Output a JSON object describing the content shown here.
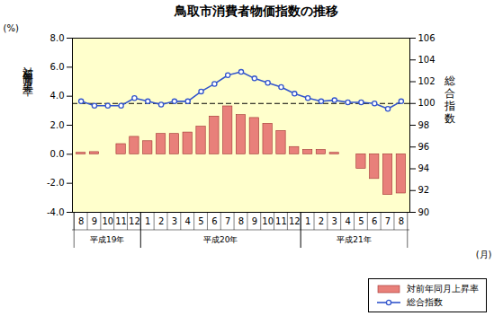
{
  "chart_data": {
    "type": "bar",
    "title": "鳥取市消費者物価指数の推移",
    "xlabel": "(月)",
    "categories": [
      "8",
      "9",
      "10",
      "11",
      "12",
      "1",
      "2",
      "3",
      "4",
      "5",
      "6",
      "7",
      "8",
      "9",
      "10",
      "11",
      "12",
      "1",
      "2",
      "3",
      "4",
      "5",
      "6",
      "7",
      "8"
    ],
    "x_group": [
      "平成19年",
      "平成19年",
      "平成19年",
      "平成19年",
      "平成19年",
      "平成20年",
      "平成20年",
      "平成20年",
      "平成20年",
      "平成20年",
      "平成20年",
      "平成20年",
      "平成20年",
      "平成20年",
      "平成20年",
      "平成20年",
      "平成20年",
      "平成21年",
      "平成21年",
      "平成21年",
      "平成21年",
      "平成21年",
      "平成21年",
      "平成21年",
      "平成21年"
    ],
    "ylabel": "対前年同月上昇率",
    "y_unit_label": "(%)",
    "y2label": "総合指数",
    "ylim": [
      -4,
      8
    ],
    "yticks": [
      {
        "value": -4,
        "label": "-4.0"
      },
      {
        "value": -2,
        "label": "-2.0"
      },
      {
        "value": 0,
        "label": "0.0"
      },
      {
        "value": 2,
        "label": "2.0"
      },
      {
        "value": 4,
        "label": "4.0"
      },
      {
        "value": 6,
        "label": "6.0"
      },
      {
        "value": 8,
        "label": "8.0"
      }
    ],
    "y2lim": [
      90,
      106
    ],
    "y2ticks": [
      90,
      92,
      94,
      96,
      98,
      100,
      102,
      104,
      106
    ],
    "series": [
      {
        "name": "対前年同月上昇率",
        "type": "bar",
        "color": "#E8807A",
        "values": [
          0.1,
          0.15,
          0.0,
          0.7,
          1.2,
          0.9,
          1.4,
          1.4,
          1.5,
          1.9,
          2.6,
          3.3,
          2.7,
          2.5,
          2.1,
          1.6,
          0.5,
          0.3,
          0.3,
          0.1,
          0.0,
          -1.0,
          -1.7,
          -2.8,
          -2.7
        ]
      },
      {
        "name": "総合指数",
        "type": "line",
        "axis": "y2",
        "color": "#3355CC",
        "marker": "circle",
        "values": [
          100.2,
          99.8,
          99.8,
          99.8,
          100.5,
          100.2,
          99.9,
          100.2,
          100.2,
          101.1,
          101.8,
          102.6,
          102.9,
          102.3,
          101.9,
          101.5,
          100.9,
          100.5,
          100.2,
          100.3,
          100.1,
          100.1,
          100.0,
          99.5,
          100.2
        ]
      }
    ],
    "reference_line": {
      "axis": "y2",
      "value": 100,
      "line_style": "dashed"
    },
    "legend": "lower right",
    "grid": false
  }
}
